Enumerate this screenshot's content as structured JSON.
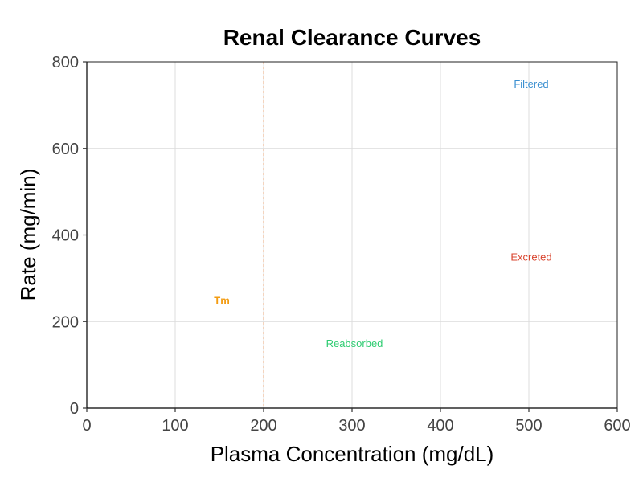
{
  "chart_data": {
    "type": "line",
    "title": "Renal Clearance Curves",
    "xlabel": "Plasma Concentration (mg/dL)",
    "ylabel": "Rate (mg/min)",
    "xlim": [
      0,
      600
    ],
    "ylim": [
      0,
      800
    ],
    "xticks": [
      0,
      100,
      200,
      300,
      400,
      500,
      600
    ],
    "yticks": [
      0,
      200,
      400,
      600,
      800
    ],
    "grid": true,
    "reference_lines": [
      {
        "axis": "x",
        "value": 200,
        "style": "dashed",
        "color": "#E8A87C"
      }
    ],
    "series": [],
    "annotations": [
      {
        "text": "Filtered",
        "x": 500,
        "y": 750,
        "color": "#3A8FD0",
        "bold": false
      },
      {
        "text": "Excreted",
        "x": 500,
        "y": 350,
        "color": "#D9452F",
        "bold": false
      },
      {
        "text": "Tm",
        "x": 150,
        "y": 250,
        "color": "#F39C12",
        "bold": true
      },
      {
        "text": "Reabsorbed",
        "x": 300,
        "y": 150,
        "color": "#2ECC71",
        "bold": false
      }
    ]
  }
}
